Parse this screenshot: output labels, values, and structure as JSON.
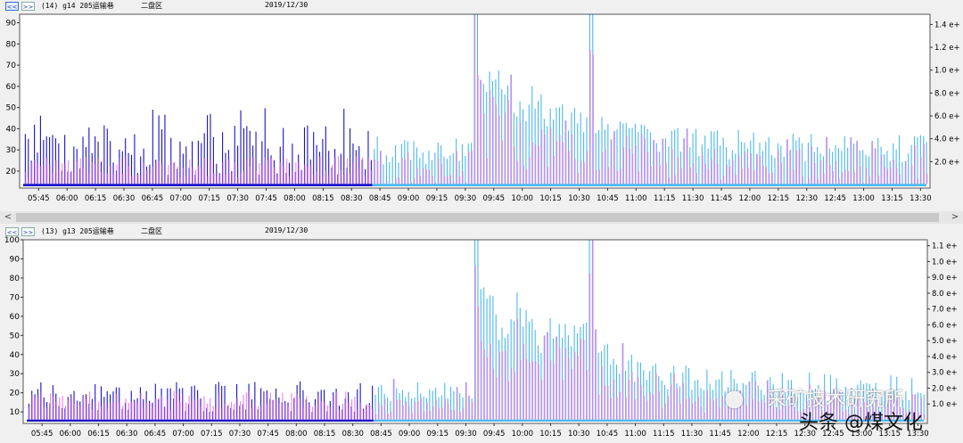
{
  "panels": [
    {
      "id": "top",
      "nav": {
        "prev": "<<",
        "next": ">>"
      },
      "title": "(14) g14 205运输巷",
      "area": "二盘区",
      "date": "2019/12/30"
    },
    {
      "id": "bottom",
      "nav": {
        "prev": "<<",
        "next": ">>"
      },
      "title": "(13) g13 205运输巷",
      "area": "二盘区",
      "date": "2019/12/30"
    }
  ],
  "scrollbar": {
    "left": "<",
    "right": ">"
  },
  "watermark": {
    "line1": "采矿技术研究所",
    "line2": "头条 @煤文化"
  },
  "colors": {
    "dark": "#1a12c8",
    "pink": "#ee80ee",
    "light": "#4db8ee",
    "magenta": "#d64fd6",
    "frame": "#555555"
  },
  "chart_data": [
    {
      "type": "bar",
      "x_ticks": [
        "05:45",
        "06:00",
        "06:15",
        "06:30",
        "06:45",
        "07:00",
        "07:15",
        "07:30",
        "07:45",
        "08:00",
        "08:15",
        "08:30",
        "08:45",
        "09:00",
        "09:15",
        "09:30",
        "09:45",
        "10:00",
        "10:15",
        "10:30",
        "10:45",
        "11:00",
        "11:15",
        "11:30",
        "11:45",
        "12:00",
        "12:15",
        "12:30",
        "12:45",
        "13:00",
        "13:15",
        "13:30"
      ],
      "xlim": [
        "05:35",
        "13:35"
      ],
      "ylim": [
        12,
        94
      ],
      "y_ticks": [
        20,
        30,
        40,
        50,
        60,
        70,
        80,
        90
      ],
      "y2_ticks": [
        "2.0 e+",
        "4.0 e+",
        "6.0 e+",
        "8.0 e+",
        "1.0 e+",
        "1.2 e+",
        "1.4 e+"
      ],
      "series": [],
      "profile": {
        "baseline": 14,
        "early_dark_mean": 30,
        "early_dark_spread": 12,
        "early_dark_peak": 50,
        "early_pink_mean": 20,
        "late_light_mean": 30,
        "spike_time": "09:36",
        "spike_max": 94,
        "spike2_time": "10:36",
        "spike2_max": 94,
        "switch_time": "08:41"
      }
    },
    {
      "type": "bar",
      "x_ticks": [
        "05:45",
        "06:00",
        "06:15",
        "06:30",
        "06:45",
        "07:00",
        "07:15",
        "07:30",
        "07:45",
        "08:00",
        "08:15",
        "08:30",
        "08:45",
        "09:00",
        "09:15",
        "09:30",
        "09:45",
        "10:00",
        "10:15",
        "10:30",
        "10:45",
        "11:00",
        "11:15",
        "11:30",
        "11:45",
        "12:00",
        "12:15",
        "12:30",
        "12:45",
        "13:00",
        "13:15",
        "13:30"
      ],
      "xlim": [
        "05:35",
        "13:35"
      ],
      "ylim": [
        4,
        100
      ],
      "y_ticks": [
        10,
        20,
        30,
        40,
        50,
        60,
        70,
        80,
        90,
        100
      ],
      "y2_ticks": [
        "1.0 e+",
        "2.0 e+",
        "3.0 e+",
        "4.0 e+",
        "5.0 e+",
        "6.0 e+",
        "7.0 e+",
        "8.0 e+",
        "9.0 e+",
        "1.0 e+",
        "1.1 e+"
      ],
      "series": [],
      "profile": {
        "baseline": 6,
        "early_dark_mean": 18,
        "early_dark_spread": 8,
        "early_dark_peak": 26,
        "early_pink_mean": 14,
        "late_light_mean": 22,
        "spike_time": "09:36",
        "spike_max": 100,
        "spike2_time": "10:36",
        "spike2_max": 100,
        "switch_time": "08:41"
      }
    }
  ]
}
